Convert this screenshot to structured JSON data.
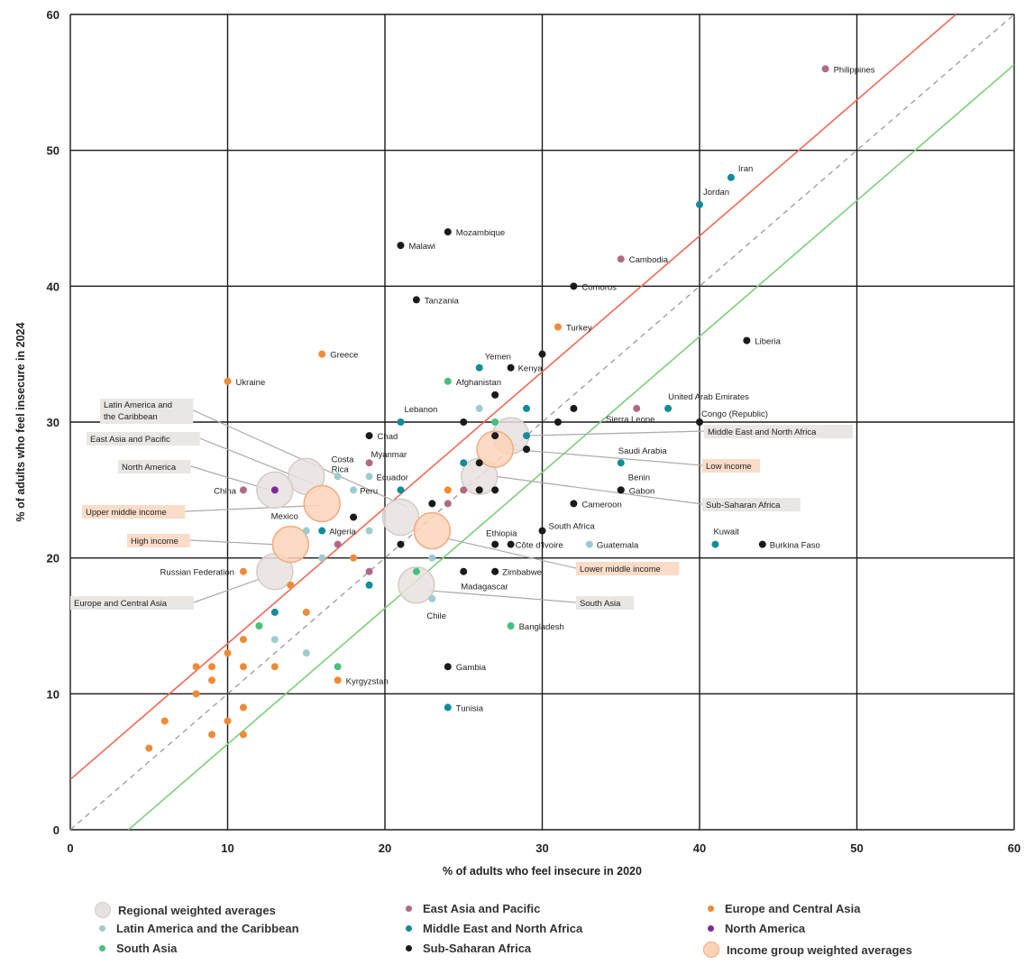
{
  "colors": {
    "east_asia_pacific": "#b06a86",
    "europe_central_asia": "#f08a35",
    "latin_america": "#9ecbd1",
    "mena": "#118c99",
    "north_america": "#7d2b98",
    "south_asia": "#47c07d",
    "sub_saharan": "#1a1a1a",
    "regional_avg_fill": "#e7e2df",
    "regional_avg_stroke": "#d3ccc8",
    "income_avg_fill": "#fbd3b8",
    "income_avg_stroke": "#f3aa80",
    "red_line": "#ef6a55",
    "green_line": "#7dcf7a",
    "diag": "#999999",
    "grid": "#1a1a1a",
    "callout_box_regional": "#e9e6e4",
    "callout_box_income": "#fbdcc8"
  },
  "chart_data": {
    "type": "scatter",
    "xlabel": "% of adults who feel insecure in 2020",
    "ylabel": "% of adults who feel insecure in 2024",
    "xlim": [
      0,
      60
    ],
    "ylim": [
      0,
      60
    ],
    "xticks": [
      "0",
      "10",
      "20",
      "30",
      "40",
      "50",
      "60"
    ],
    "yticks": [
      "0",
      "10",
      "20",
      "30",
      "40",
      "50",
      "60"
    ],
    "grid": true,
    "reference_lines": [
      {
        "kind": "diagonal",
        "style": "dashed",
        "x1": 0,
        "y1": 0,
        "x2": 60,
        "y2": 60
      },
      {
        "kind": "upper",
        "x1": 0,
        "y1": 3.7,
        "x2": 56.3,
        "y2": 60
      },
      {
        "kind": "lower",
        "x1": 3.7,
        "y1": 0,
        "x2": 60,
        "y2": 56.3
      }
    ],
    "legend": [
      {
        "key": "regional_avg",
        "label": "Regional weighted averages"
      },
      {
        "key": "east_asia_pacific",
        "label": "East Asia and Pacific"
      },
      {
        "key": "europe_central_asia",
        "label": "Europe and Central Asia"
      },
      {
        "key": "latin_america",
        "label": "Latin America and the Caribbean"
      },
      {
        "key": "mena",
        "label": "Middle East and North Africa"
      },
      {
        "key": "north_america",
        "label": "North America"
      },
      {
        "key": "south_asia",
        "label": "South Asia"
      },
      {
        "key": "sub_saharan",
        "label": "Sub-Saharan Africa"
      },
      {
        "key": "income_avg",
        "label": "Income group weighted averages"
      }
    ],
    "points": [
      {
        "x": 48,
        "y": 56,
        "g": "east_asia_pacific",
        "label": "Philippines"
      },
      {
        "x": 35,
        "y": 42,
        "g": "east_asia_pacific",
        "label": "Cambodia"
      },
      {
        "x": 19,
        "y": 27,
        "g": "east_asia_pacific",
        "label": "Myanmar"
      },
      {
        "x": 11,
        "y": 25,
        "g": "east_asia_pacific",
        "label": "China"
      },
      {
        "x": 36,
        "y": 31,
        "g": "east_asia_pacific",
        "label": ""
      },
      {
        "x": 25,
        "y": 25,
        "g": "east_asia_pacific",
        "label": ""
      },
      {
        "x": 24,
        "y": 24,
        "g": "east_asia_pacific",
        "label": ""
      },
      {
        "x": 17,
        "y": 21,
        "g": "east_asia_pacific",
        "label": ""
      },
      {
        "x": 19,
        "y": 19,
        "g": "east_asia_pacific",
        "label": ""
      },
      {
        "x": 10,
        "y": 33,
        "g": "europe_central_asia",
        "label": "Ukraine"
      },
      {
        "x": 16,
        "y": 35,
        "g": "europe_central_asia",
        "label": "Greece"
      },
      {
        "x": 31,
        "y": 37,
        "g": "europe_central_asia",
        "label": "Turkey"
      },
      {
        "x": 11,
        "y": 19,
        "g": "europe_central_asia",
        "label": "Russian Federation"
      },
      {
        "x": 17,
        "y": 11,
        "g": "europe_central_asia",
        "label": "Kyrgyzstan"
      },
      {
        "x": 24,
        "y": 25,
        "g": "europe_central_asia",
        "label": ""
      },
      {
        "x": 18,
        "y": 20,
        "g": "europe_central_asia",
        "label": ""
      },
      {
        "x": 14,
        "y": 18,
        "g": "europe_central_asia",
        "label": ""
      },
      {
        "x": 15,
        "y": 16,
        "g": "europe_central_asia",
        "label": ""
      },
      {
        "x": 11,
        "y": 14,
        "g": "europe_central_asia",
        "label": ""
      },
      {
        "x": 10,
        "y": 13,
        "g": "europe_central_asia",
        "label": ""
      },
      {
        "x": 8,
        "y": 12,
        "g": "europe_central_asia",
        "label": ""
      },
      {
        "x": 9,
        "y": 12,
        "g": "europe_central_asia",
        "label": ""
      },
      {
        "x": 11,
        "y": 12,
        "g": "europe_central_asia",
        "label": ""
      },
      {
        "x": 13,
        "y": 12,
        "g": "europe_central_asia",
        "label": ""
      },
      {
        "x": 9,
        "y": 11,
        "g": "europe_central_asia",
        "label": ""
      },
      {
        "x": 8,
        "y": 10,
        "g": "europe_central_asia",
        "label": ""
      },
      {
        "x": 11,
        "y": 9,
        "g": "europe_central_asia",
        "label": ""
      },
      {
        "x": 6,
        "y": 8,
        "g": "europe_central_asia",
        "label": ""
      },
      {
        "x": 10,
        "y": 8,
        "g": "europe_central_asia",
        "label": ""
      },
      {
        "x": 9,
        "y": 7,
        "g": "europe_central_asia",
        "label": ""
      },
      {
        "x": 11,
        "y": 7,
        "g": "europe_central_asia",
        "label": ""
      },
      {
        "x": 5,
        "y": 6,
        "g": "europe_central_asia",
        "label": ""
      },
      {
        "x": 17,
        "y": 26,
        "g": "latin_america",
        "label": "Costa Rica"
      },
      {
        "x": 19,
        "y": 26,
        "g": "latin_america",
        "label": "Ecuador"
      },
      {
        "x": 18,
        "y": 25,
        "g": "latin_america",
        "label": "Peru"
      },
      {
        "x": 15,
        "y": 22,
        "g": "latin_america",
        "label": "Mexico"
      },
      {
        "x": 33,
        "y": 21,
        "g": "latin_america",
        "label": "Guatemala"
      },
      {
        "x": 23,
        "y": 17,
        "g": "latin_america",
        "label": "Chile"
      },
      {
        "x": 26,
        "y": 31,
        "g": "latin_america",
        "label": ""
      },
      {
        "x": 26,
        "y": 25,
        "g": "latin_america",
        "label": ""
      },
      {
        "x": 23,
        "y": 24,
        "g": "latin_america",
        "label": ""
      },
      {
        "x": 19,
        "y": 22,
        "g": "latin_america",
        "label": ""
      },
      {
        "x": 16,
        "y": 20,
        "g": "latin_america",
        "label": ""
      },
      {
        "x": 23,
        "y": 20,
        "g": "latin_america",
        "label": ""
      },
      {
        "x": 13,
        "y": 14,
        "g": "latin_america",
        "label": ""
      },
      {
        "x": 15,
        "y": 13,
        "g": "latin_america",
        "label": ""
      },
      {
        "x": 42,
        "y": 48,
        "g": "mena",
        "label": "Iran"
      },
      {
        "x": 40,
        "y": 46,
        "g": "mena",
        "label": "Jordan"
      },
      {
        "x": 26,
        "y": 34,
        "g": "mena",
        "label": "Yemen"
      },
      {
        "x": 21,
        "y": 30,
        "g": "mena",
        "label": "Lebanon"
      },
      {
        "x": 38,
        "y": 31,
        "g": "mena",
        "label": "United Arab Emirates"
      },
      {
        "x": 35,
        "y": 27,
        "g": "mena",
        "label": "Saudi Arabia"
      },
      {
        "x": 41,
        "y": 21,
        "g": "mena",
        "label": "Kuwait"
      },
      {
        "x": 16,
        "y": 22,
        "g": "mena",
        "label": "Algeria"
      },
      {
        "x": 24,
        "y": 9,
        "g": "mena",
        "label": "Tunisia"
      },
      {
        "x": 29,
        "y": 31,
        "g": "mena",
        "label": ""
      },
      {
        "x": 29,
        "y": 29,
        "g": "mena",
        "label": ""
      },
      {
        "x": 25,
        "y": 27,
        "g": "mena",
        "label": ""
      },
      {
        "x": 21,
        "y": 25,
        "g": "mena",
        "label": ""
      },
      {
        "x": 19,
        "y": 18,
        "g": "mena",
        "label": ""
      },
      {
        "x": 13,
        "y": 16,
        "g": "mena",
        "label": ""
      },
      {
        "x": 13,
        "y": 25,
        "g": "north_america",
        "label": ""
      },
      {
        "x": 24,
        "y": 33,
        "g": "south_asia",
        "label": "Afghanistan"
      },
      {
        "x": 28,
        "y": 15,
        "g": "south_asia",
        "label": "Bangladesh"
      },
      {
        "x": 27,
        "y": 30,
        "g": "south_asia",
        "label": ""
      },
      {
        "x": 22,
        "y": 19,
        "g": "south_asia",
        "label": ""
      },
      {
        "x": 12,
        "y": 15,
        "g": "south_asia",
        "label": ""
      },
      {
        "x": 17,
        "y": 12,
        "g": "south_asia",
        "label": ""
      },
      {
        "x": 24,
        "y": 44,
        "g": "sub_saharan",
        "label": "Mozambique"
      },
      {
        "x": 21,
        "y": 43,
        "g": "sub_saharan",
        "label": "Malawi"
      },
      {
        "x": 32,
        "y": 40,
        "g": "sub_saharan",
        "label": "Comoros"
      },
      {
        "x": 22,
        "y": 39,
        "g": "sub_saharan",
        "label": "Tanzania"
      },
      {
        "x": 43,
        "y": 36,
        "g": "sub_saharan",
        "label": "Liberia"
      },
      {
        "x": 28,
        "y": 34,
        "g": "sub_saharan",
        "label": "Kenya"
      },
      {
        "x": 40,
        "y": 30,
        "g": "sub_saharan",
        "label": "Congo (Republic)"
      },
      {
        "x": 19,
        "y": 29,
        "g": "sub_saharan",
        "label": "Chad"
      },
      {
        "x": 29,
        "y": 28,
        "g": "sub_saharan",
        "label": "Sierra Leone"
      },
      {
        "x": 35,
        "y": 25,
        "g": "sub_saharan",
        "label": "Benin"
      },
      {
        "x": 35,
        "y": 25,
        "g": "sub_saharan",
        "label": "Gabon"
      },
      {
        "x": 32,
        "y": 24,
        "g": "sub_saharan",
        "label": "Cameroon"
      },
      {
        "x": 30,
        "y": 22,
        "g": "sub_saharan",
        "label": "South Africa"
      },
      {
        "x": 27,
        "y": 21,
        "g": "sub_saharan",
        "label": "Ethiopia"
      },
      {
        "x": 28,
        "y": 21,
        "g": "sub_saharan",
        "label": "Côte d'Ivoire"
      },
      {
        "x": 44,
        "y": 21,
        "g": "sub_saharan",
        "label": "Burkina Faso"
      },
      {
        "x": 27,
        "y": 19,
        "g": "sub_saharan",
        "label": "Zimbabwe"
      },
      {
        "x": 25,
        "y": 19,
        "g": "sub_saharan",
        "label": "Madagascar"
      },
      {
        "x": 24,
        "y": 12,
        "g": "sub_saharan",
        "label": "Gambia"
      },
      {
        "x": 30,
        "y": 35,
        "g": "sub_saharan",
        "label": ""
      },
      {
        "x": 27,
        "y": 32,
        "g": "sub_saharan",
        "label": ""
      },
      {
        "x": 25,
        "y": 30,
        "g": "sub_saharan",
        "label": ""
      },
      {
        "x": 31,
        "y": 30,
        "g": "sub_saharan",
        "label": ""
      },
      {
        "x": 32,
        "y": 31,
        "g": "sub_saharan",
        "label": ""
      },
      {
        "x": 27,
        "y": 29,
        "g": "sub_saharan",
        "label": ""
      },
      {
        "x": 26,
        "y": 27,
        "g": "sub_saharan",
        "label": ""
      },
      {
        "x": 26,
        "y": 25,
        "g": "sub_saharan",
        "label": ""
      },
      {
        "x": 27,
        "y": 25,
        "g": "sub_saharan",
        "label": ""
      },
      {
        "x": 23,
        "y": 24,
        "g": "sub_saharan",
        "label": ""
      },
      {
        "x": 18,
        "y": 23,
        "g": "sub_saharan",
        "label": ""
      },
      {
        "x": 21,
        "y": 21,
        "g": "sub_saharan",
        "label": ""
      }
    ],
    "regional_averages": [
      {
        "x": 28,
        "y": 29,
        "label": "Middle East and North Africa"
      },
      {
        "x": 15,
        "y": 26,
        "label": "East Asia and Pacific"
      },
      {
        "x": 13,
        "y": 25,
        "label": "North America"
      },
      {
        "x": 21,
        "y": 23,
        "label": "Latin America and the Caribbean"
      },
      {
        "x": 26,
        "y": 26,
        "label": "Sub-Saharan Africa"
      },
      {
        "x": 22,
        "y": 18,
        "label": "South Asia"
      },
      {
        "x": 13,
        "y": 19,
        "label": "Europe and Central Asia"
      }
    ],
    "income_averages": [
      {
        "x": 27,
        "y": 28,
        "label": "Low income"
      },
      {
        "x": 16,
        "y": 24,
        "label": "Upper middle income"
      },
      {
        "x": 14,
        "y": 21,
        "label": "High income"
      },
      {
        "x": 23,
        "y": 22,
        "label": "Lower middle income"
      }
    ]
  }
}
